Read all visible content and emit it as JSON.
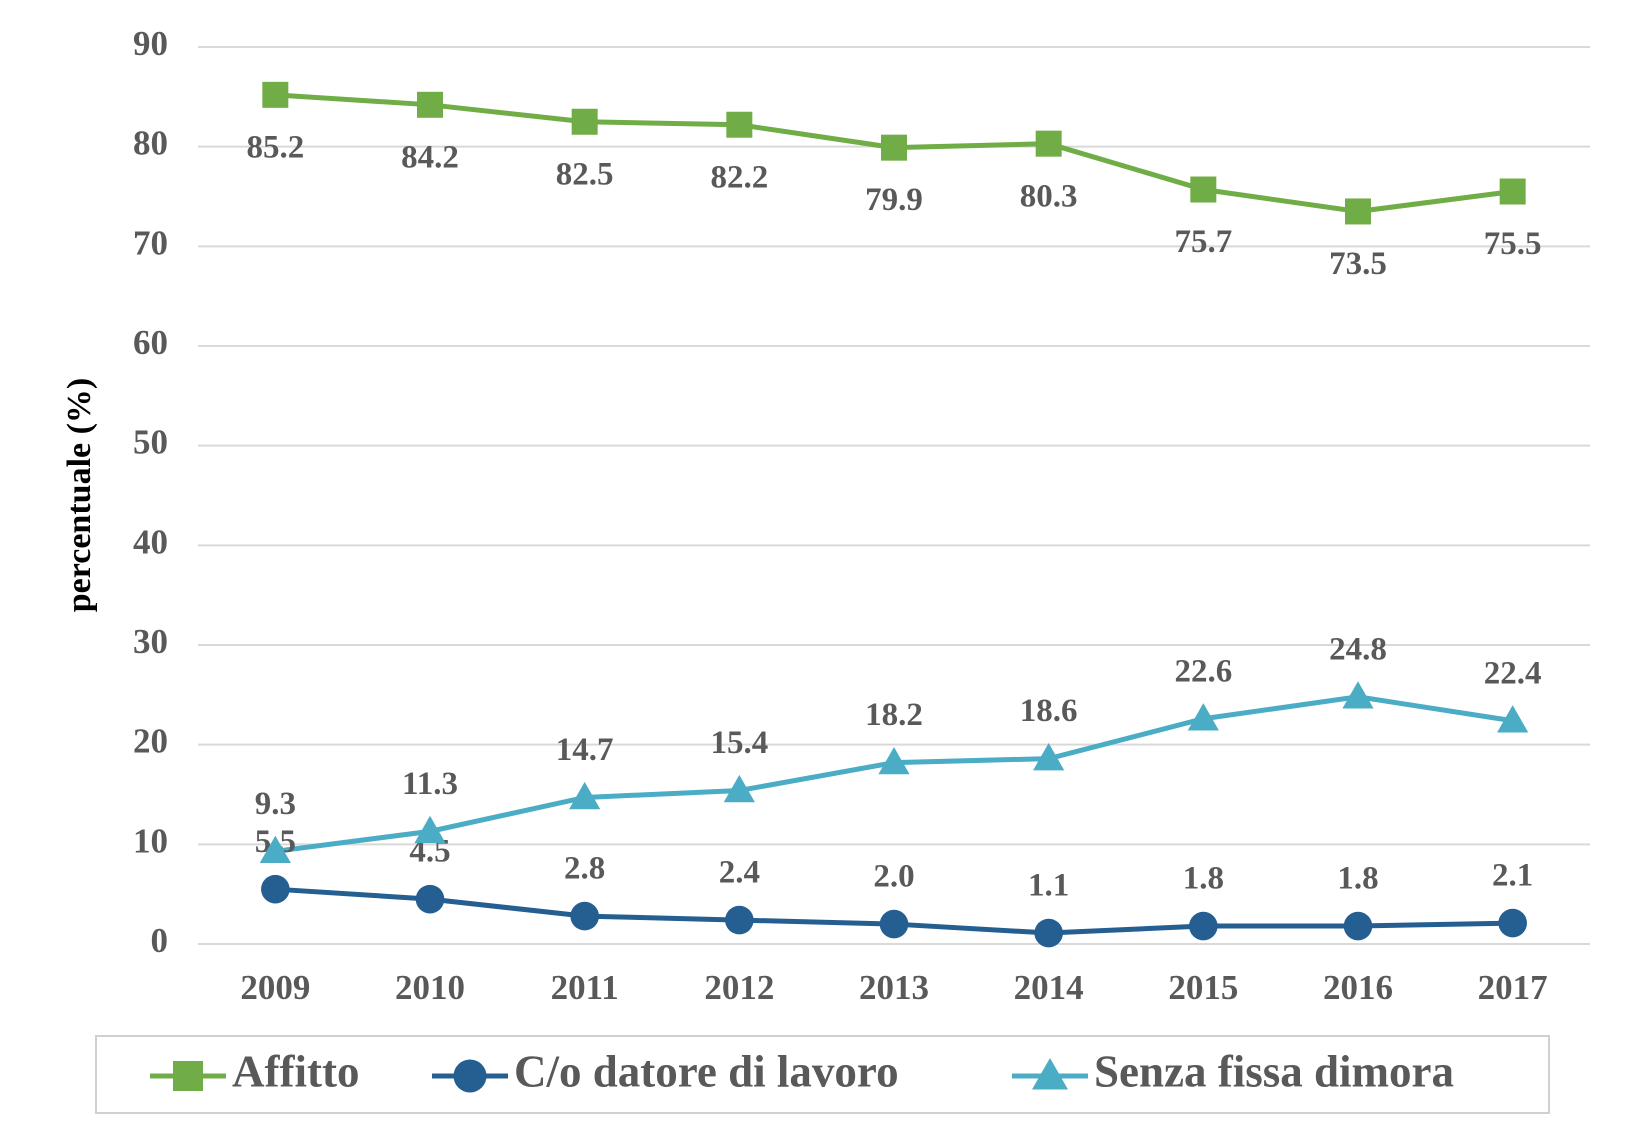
{
  "chart_data": {
    "type": "line",
    "y_label": "percentuale (%)",
    "categories": [
      "2009",
      "2010",
      "2011",
      "2012",
      "2013",
      "2014",
      "2015",
      "2016",
      "2017"
    ],
    "series": [
      {
        "name": "Affitto",
        "color": "#70ad47",
        "marker": "square",
        "label_position": "below",
        "values": [
          85.2,
          84.2,
          82.5,
          82.2,
          79.9,
          80.3,
          75.7,
          73.5,
          75.5
        ]
      },
      {
        "name": "C/o datore di lavoro",
        "color": "#255e91",
        "marker": "circle",
        "label_position": "above",
        "values": [
          5.5,
          4.5,
          2.8,
          2.4,
          2.0,
          1.1,
          1.8,
          1.8,
          2.1
        ],
        "value_labels": [
          "5.5",
          "4.5",
          "2.8",
          "2.4",
          "2.0",
          "1.1",
          "1.8",
          "1.8",
          "2.1"
        ]
      },
      {
        "name": "Senza fissa dimora",
        "color": "#4bacc6",
        "marker": "triangle",
        "label_position": "above",
        "values": [
          9.3,
          11.3,
          14.7,
          15.4,
          18.2,
          18.6,
          22.6,
          24.8,
          22.4
        ]
      }
    ],
    "ylim": [
      0,
      90
    ],
    "yticks": [
      0,
      10,
      20,
      30,
      40,
      50,
      60,
      70,
      80,
      90
    ],
    "grid": true,
    "legend": "bottom"
  }
}
